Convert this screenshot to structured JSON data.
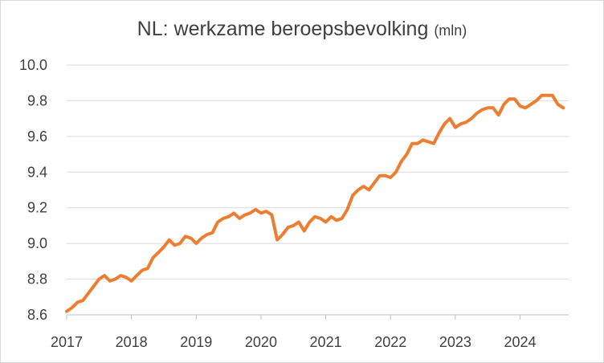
{
  "chart_data": {
    "type": "line",
    "title": "NL: werkzame beroepsbevolking",
    "unit": "(mln)",
    "xlabel": "",
    "ylabel": "",
    "x_ticks": [
      "2017",
      "2018",
      "2019",
      "2020",
      "2021",
      "2022",
      "2023",
      "2024"
    ],
    "xlim": [
      2017.0,
      2024.75
    ],
    "y_ticks": [
      "8.6",
      "8.8",
      "9.0",
      "9.2",
      "9.4",
      "9.6",
      "9.8",
      "10.0"
    ],
    "ylim": [
      8.6,
      10.0
    ],
    "grid": true,
    "legend": "none",
    "line_color": "#ED7D31",
    "series": [
      {
        "x": [
          2017.0,
          2017.083,
          2017.167,
          2017.25,
          2017.333,
          2017.417,
          2017.5,
          2017.583,
          2017.667,
          2017.75,
          2017.833,
          2017.917,
          2018.0,
          2018.083,
          2018.167,
          2018.25,
          2018.333,
          2018.417,
          2018.5,
          2018.583,
          2018.667,
          2018.75,
          2018.833,
          2018.917,
          2019.0,
          2019.083,
          2019.167,
          2019.25,
          2019.333,
          2019.417,
          2019.5,
          2019.583,
          2019.667,
          2019.75,
          2019.833,
          2019.917,
          2020.0,
          2020.083,
          2020.167,
          2020.25,
          2020.333,
          2020.417,
          2020.5,
          2020.583,
          2020.667,
          2020.75,
          2020.833,
          2020.917,
          2021.0,
          2021.083,
          2021.167,
          2021.25,
          2021.333,
          2021.417,
          2021.5,
          2021.583,
          2021.667,
          2021.75,
          2021.833,
          2021.917,
          2022.0,
          2022.083,
          2022.167,
          2022.25,
          2022.333,
          2022.417,
          2022.5,
          2022.583,
          2022.667,
          2022.75,
          2022.833,
          2022.917,
          2023.0,
          2023.083,
          2023.167,
          2023.25,
          2023.333,
          2023.417,
          2023.5,
          2023.583,
          2023.667,
          2023.75,
          2023.833,
          2023.917,
          2024.0,
          2024.083,
          2024.167,
          2024.25,
          2024.333,
          2024.417,
          2024.5,
          2024.583,
          2024.667
        ],
        "y": [
          8.62,
          8.64,
          8.67,
          8.68,
          8.72,
          8.76,
          8.8,
          8.82,
          8.79,
          8.8,
          8.82,
          8.81,
          8.79,
          8.82,
          8.85,
          8.86,
          8.92,
          8.95,
          8.98,
          9.02,
          8.99,
          9.0,
          9.04,
          9.03,
          9.0,
          9.03,
          9.05,
          9.06,
          9.12,
          9.14,
          9.15,
          9.17,
          9.14,
          9.16,
          9.17,
          9.19,
          9.17,
          9.18,
          9.16,
          9.02,
          9.05,
          9.09,
          9.1,
          9.12,
          9.07,
          9.12,
          9.15,
          9.14,
          9.12,
          9.15,
          9.13,
          9.14,
          9.19,
          9.27,
          9.3,
          9.32,
          9.3,
          9.34,
          9.38,
          9.38,
          9.37,
          9.4,
          9.46,
          9.5,
          9.56,
          9.56,
          9.58,
          9.57,
          9.56,
          9.62,
          9.67,
          9.7,
          9.65,
          9.67,
          9.68,
          9.7,
          9.73,
          9.75,
          9.76,
          9.76,
          9.72,
          9.78,
          9.81,
          9.81,
          9.77,
          9.76,
          9.78,
          9.8,
          9.83,
          9.83,
          9.83,
          9.78,
          9.76
        ]
      }
    ]
  }
}
